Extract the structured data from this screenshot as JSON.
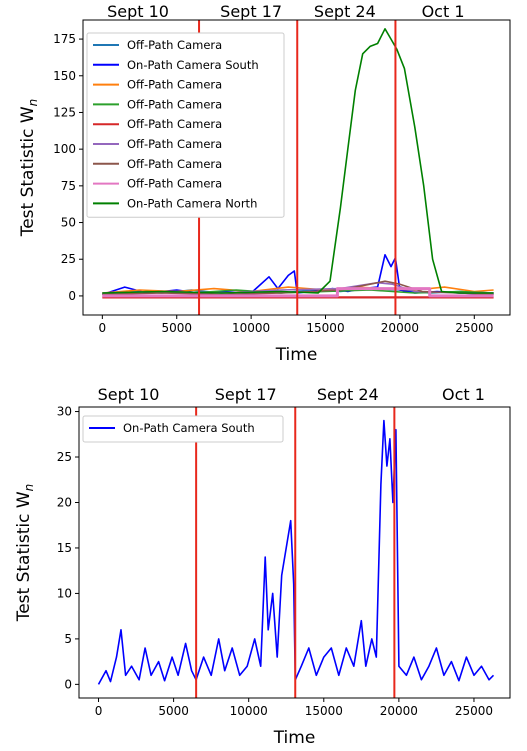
{
  "chart_data": [
    {
      "type": "line",
      "xlabel": "Time",
      "ylabel": "Test Statistic W",
      "ylabel_sub": "n",
      "xlim": [
        -1300,
        27400
      ],
      "ylim": [
        -13,
        188
      ],
      "xticks": [
        0,
        5000,
        10000,
        15000,
        20000,
        25000
      ],
      "yticks": [
        0,
        25,
        50,
        75,
        100,
        125,
        150,
        175
      ],
      "vlines": [
        6500,
        13100,
        19700
      ],
      "date_labels": [
        {
          "text": "Sept 10",
          "x": 2400
        },
        {
          "text": "Sept 17",
          "x": 10000
        },
        {
          "text": "Sept 24",
          "x": 16300
        },
        {
          "text": "Oct 1",
          "x": 22900
        }
      ],
      "grid": false,
      "legend_position": "top-left",
      "series": [
        {
          "name": "Off-Path Camera",
          "color": "#1f77b4",
          "points": [
            [
              0,
              1
            ],
            [
              2000,
              3
            ],
            [
              4000,
              2
            ],
            [
              6000,
              4
            ],
            [
              8000,
              2
            ],
            [
              10000,
              3
            ],
            [
              12000,
              2
            ],
            [
              14000,
              4
            ],
            [
              16000,
              3
            ],
            [
              18000,
              5
            ],
            [
              20000,
              4
            ],
            [
              22000,
              2
            ],
            [
              24000,
              3
            ],
            [
              26300,
              2
            ]
          ]
        },
        {
          "name": "On-Path Camera South",
          "color": "#0000ff",
          "points": [
            [
              0,
              1
            ],
            [
              1500,
              6
            ],
            [
              3000,
              2
            ],
            [
              5000,
              4
            ],
            [
              6500,
              2
            ],
            [
              8000,
              3
            ],
            [
              10000,
              2
            ],
            [
              11200,
              13
            ],
            [
              11800,
              5
            ],
            [
              12500,
              14
            ],
            [
              12900,
              17
            ],
            [
              13100,
              2
            ],
            [
              14000,
              3
            ],
            [
              15500,
              5
            ],
            [
              16500,
              3
            ],
            [
              17500,
              5
            ],
            [
              18500,
              6
            ],
            [
              19000,
              28
            ],
            [
              19400,
              20
            ],
            [
              19700,
              26
            ],
            [
              20000,
              4
            ],
            [
              21000,
              2
            ],
            [
              22500,
              3
            ],
            [
              24000,
              2
            ],
            [
              26300,
              1
            ]
          ]
        },
        {
          "name": "Off-Path Camera",
          "color": "#ff7f0e",
          "points": [
            [
              0,
              2
            ],
            [
              2500,
              4
            ],
            [
              5000,
              3
            ],
            [
              7500,
              5
            ],
            [
              10000,
              3
            ],
            [
              12500,
              6
            ],
            [
              15000,
              4
            ],
            [
              17000,
              6
            ],
            [
              19000,
              5
            ],
            [
              21000,
              4
            ],
            [
              23000,
              6
            ],
            [
              25000,
              3
            ],
            [
              26300,
              4
            ]
          ]
        },
        {
          "name": "Off-Path Camera",
          "color": "#2ca02c",
          "points": [
            [
              0,
              1
            ],
            [
              3000,
              3
            ],
            [
              6000,
              2
            ],
            [
              9000,
              4
            ],
            [
              12000,
              2
            ],
            [
              15000,
              3
            ],
            [
              18000,
              4
            ],
            [
              21000,
              2
            ],
            [
              24000,
              3
            ],
            [
              26300,
              2
            ]
          ]
        },
        {
          "name": "Off-Path Camera",
          "color": "#d62728",
          "points": [
            [
              0,
              -1
            ],
            [
              26300,
              -1
            ]
          ]
        },
        {
          "name": "Off-Path Camera",
          "color": "#9467bd",
          "points": [
            [
              0,
              2
            ],
            [
              4000,
              3
            ],
            [
              8000,
              2
            ],
            [
              12000,
              4
            ],
            [
              16000,
              5
            ],
            [
              18500,
              9
            ],
            [
              19500,
              8
            ],
            [
              21000,
              3
            ],
            [
              24000,
              2
            ],
            [
              26300,
              2
            ]
          ]
        },
        {
          "name": "Off-Path Camera",
          "color": "#8c564b",
          "points": [
            [
              0,
              1
            ],
            [
              4000,
              2
            ],
            [
              8000,
              1
            ],
            [
              12000,
              2
            ],
            [
              16000,
              4
            ],
            [
              18000,
              8
            ],
            [
              19000,
              10
            ],
            [
              20000,
              8
            ],
            [
              21500,
              3
            ],
            [
              24000,
              2
            ],
            [
              26300,
              1
            ]
          ]
        },
        {
          "name": "Off-Path Camera",
          "color": "#e377c2",
          "points": [
            [
              0,
              0
            ],
            [
              15800,
              0
            ],
            [
              15800,
              5
            ],
            [
              22000,
              5
            ],
            [
              22000,
              0
            ],
            [
              26300,
              0
            ]
          ]
        },
        {
          "name": "On-Path Camera North",
          "color": "#008000",
          "points": [
            [
              0,
              2
            ],
            [
              4000,
              3
            ],
            [
              8000,
              2
            ],
            [
              12000,
              3
            ],
            [
              14500,
              2
            ],
            [
              15300,
              10
            ],
            [
              16000,
              60
            ],
            [
              16500,
              100
            ],
            [
              17000,
              140
            ],
            [
              17500,
              165
            ],
            [
              18000,
              170
            ],
            [
              18500,
              172
            ],
            [
              19000,
              182
            ],
            [
              19400,
              175
            ],
            [
              19800,
              168
            ],
            [
              20300,
              155
            ],
            [
              21000,
              115
            ],
            [
              21600,
              75
            ],
            [
              22200,
              25
            ],
            [
              22800,
              3
            ],
            [
              24000,
              2
            ],
            [
              26300,
              2
            ]
          ]
        }
      ]
    },
    {
      "type": "line",
      "xlabel": "Time",
      "ylabel": "Test Statistic W",
      "ylabel_sub": "n",
      "xlim": [
        -1300,
        27400
      ],
      "ylim": [
        -1.5,
        30.5
      ],
      "xticks": [
        0,
        5000,
        10000,
        15000,
        20000,
        25000
      ],
      "yticks": [
        0,
        5,
        10,
        15,
        20,
        25,
        30
      ],
      "vlines": [
        6500,
        13100,
        19700
      ],
      "date_labels": [
        {
          "text": "Sept 10",
          "x": 2000
        },
        {
          "text": "Sept 17",
          "x": 9800
        },
        {
          "text": "Sept 24",
          "x": 16600
        },
        {
          "text": "Oct 1",
          "x": 24300
        }
      ],
      "grid": false,
      "legend_position": "top-left",
      "series": [
        {
          "name": "On-Path Camera South",
          "color": "#0000ff",
          "points": [
            [
              0,
              0
            ],
            [
              500,
              1.5
            ],
            [
              800,
              0.3
            ],
            [
              1200,
              3
            ],
            [
              1500,
              6
            ],
            [
              1800,
              1
            ],
            [
              2200,
              2
            ],
            [
              2700,
              0.5
            ],
            [
              3100,
              4
            ],
            [
              3500,
              1
            ],
            [
              4000,
              2.5
            ],
            [
              4400,
              0.4
            ],
            [
              4900,
              3
            ],
            [
              5300,
              1
            ],
            [
              5800,
              4.5
            ],
            [
              6200,
              1.5
            ],
            [
              6500,
              0.5
            ],
            [
              7000,
              3
            ],
            [
              7500,
              1
            ],
            [
              8000,
              5
            ],
            [
              8400,
              1.5
            ],
            [
              8900,
              4
            ],
            [
              9400,
              1
            ],
            [
              9900,
              2
            ],
            [
              10400,
              5
            ],
            [
              10800,
              2
            ],
            [
              11100,
              14
            ],
            [
              11300,
              6
            ],
            [
              11600,
              10
            ],
            [
              11900,
              3
            ],
            [
              12200,
              12
            ],
            [
              12500,
              15
            ],
            [
              12800,
              18
            ],
            [
              13000,
              11
            ],
            [
              13100,
              0.5
            ],
            [
              13500,
              2
            ],
            [
              14000,
              4
            ],
            [
              14500,
              1
            ],
            [
              15000,
              3
            ],
            [
              15500,
              4
            ],
            [
              16000,
              1
            ],
            [
              16500,
              4
            ],
            [
              17000,
              2
            ],
            [
              17500,
              7
            ],
            [
              17800,
              2
            ],
            [
              18200,
              5
            ],
            [
              18500,
              3
            ],
            [
              18800,
              22
            ],
            [
              19000,
              29
            ],
            [
              19200,
              24
            ],
            [
              19400,
              27
            ],
            [
              19600,
              20
            ],
            [
              19800,
              28
            ],
            [
              20000,
              2
            ],
            [
              20500,
              1
            ],
            [
              21000,
              3
            ],
            [
              21500,
              0.5
            ],
            [
              22000,
              2
            ],
            [
              22500,
              4
            ],
            [
              23000,
              1
            ],
            [
              23500,
              2.5
            ],
            [
              24000,
              0.4
            ],
            [
              24500,
              3
            ],
            [
              25000,
              1
            ],
            [
              25500,
              2
            ],
            [
              26000,
              0.5
            ],
            [
              26300,
              1
            ]
          ]
        }
      ]
    }
  ]
}
